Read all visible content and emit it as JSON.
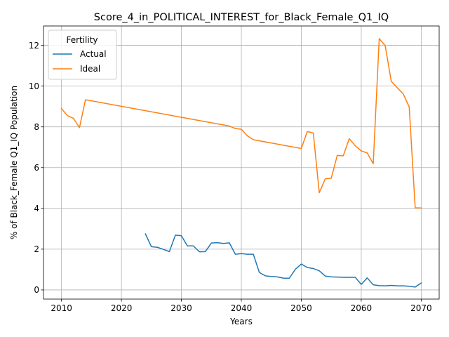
{
  "chart_data": {
    "type": "line",
    "title": "Score_4_in_POLITICAL_INTEREST_for_Black_Female_Q1_IQ",
    "xlabel": "Years",
    "ylabel": "% of Black_Female Q1_IQ Population",
    "xlim": [
      2007,
      2073
    ],
    "ylim": [
      -0.45,
      12.95
    ],
    "xticks": [
      2010,
      2020,
      2030,
      2040,
      2050,
      2060,
      2070
    ],
    "yticks": [
      0,
      2,
      4,
      6,
      8,
      10,
      12
    ],
    "grid": true,
    "legend": {
      "title": "Fertility",
      "position": "top-left"
    },
    "series": [
      {
        "name": "Actual",
        "color": "#1f77b4",
        "x": [
          2024,
          2025,
          2026,
          2027,
          2028,
          2029,
          2030,
          2031,
          2032,
          2033,
          2034,
          2035,
          2036,
          2037,
          2038,
          2039,
          2040,
          2041,
          2042,
          2043,
          2044,
          2045,
          2046,
          2047,
          2048,
          2049,
          2050,
          2051,
          2052,
          2053,
          2054,
          2055,
          2056,
          2057,
          2058,
          2059,
          2060,
          2061,
          2062,
          2063,
          2064,
          2065,
          2066,
          2067,
          2068,
          2069,
          2070
        ],
        "y": [
          2.75,
          2.12,
          2.09,
          1.99,
          1.88,
          2.69,
          2.66,
          2.16,
          2.16,
          1.87,
          1.88,
          2.3,
          2.32,
          2.28,
          2.31,
          1.75,
          1.78,
          1.75,
          1.75,
          0.86,
          0.69,
          0.66,
          0.64,
          0.58,
          0.57,
          1.01,
          1.27,
          1.1,
          1.05,
          0.94,
          0.68,
          0.64,
          0.63,
          0.62,
          0.62,
          0.62,
          0.27,
          0.59,
          0.25,
          0.21,
          0.2,
          0.22,
          0.2,
          0.2,
          0.18,
          0.14,
          0.34
        ]
      },
      {
        "name": "Ideal",
        "color": "#ff7f0e",
        "x": [
          2010,
          2011,
          2012,
          2013,
          2014,
          2038,
          2039,
          2040,
          2041,
          2042,
          2050,
          2051,
          2052,
          2053,
          2054,
          2055,
          2056,
          2057,
          2058,
          2059,
          2060,
          2061,
          2062,
          2063,
          2064,
          2065,
          2066,
          2067,
          2068,
          2069,
          2070
        ],
        "y": [
          8.9,
          8.55,
          8.42,
          7.96,
          9.33,
          8.04,
          7.92,
          7.88,
          7.56,
          7.37,
          6.94,
          7.77,
          7.7,
          4.77,
          5.45,
          5.48,
          6.6,
          6.58,
          7.42,
          7.07,
          6.82,
          6.72,
          6.19,
          12.33,
          11.98,
          10.24,
          9.92,
          9.62,
          8.98,
          4.03,
          4.02
        ]
      }
    ]
  }
}
